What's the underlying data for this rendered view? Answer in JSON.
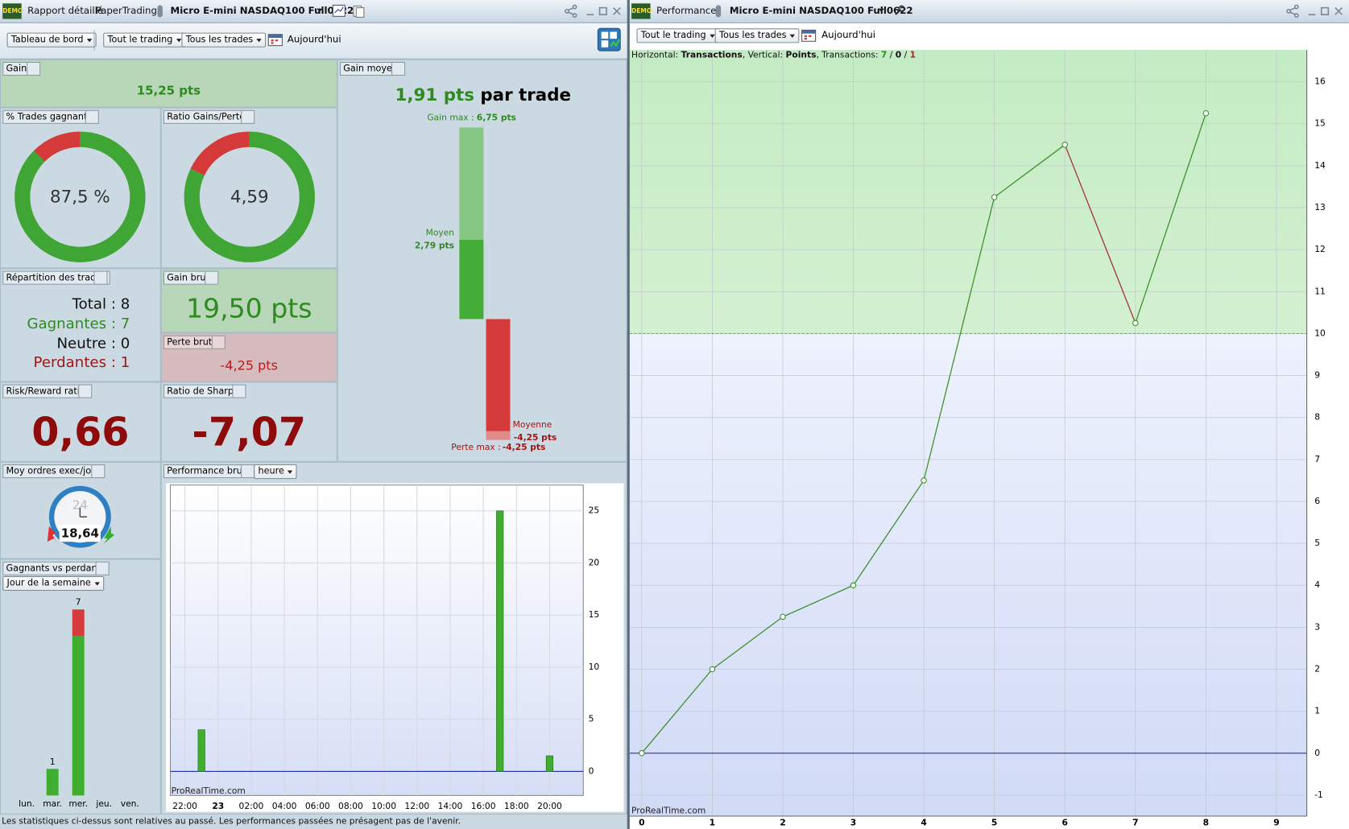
{
  "left_window": {
    "badge": "DEMO",
    "tabs": [
      "Rapport détaillé",
      "PaperTrading",
      "Micro E-mini NASDAQ100 Full0622"
    ],
    "toolbar": {
      "view": "Tableau de bord",
      "scope": "Tout le trading",
      "trades": "Tous les trades",
      "period": "Aujourd'hui"
    },
    "gain": {
      "title": "Gain",
      "value": "15,25 pts"
    },
    "win_rate": {
      "title": "% Trades gagnants",
      "value": 87.5,
      "label": "87,5 %",
      "win_color": "#3fa535",
      "loss_color": "#d43a3a"
    },
    "gain_loss_ratio": {
      "title": "Ratio Gains/Pertes",
      "value": 4.59,
      "label": "4,59",
      "win_color": "#3fa535",
      "loss_color": "#d43a3a"
    },
    "distribution": {
      "title": "Répartition des trades",
      "total": "Total : 8",
      "winners": "Gagnantes : 7",
      "neutral": "Neutre : 0",
      "losers": "Perdantes : 1"
    },
    "gross_gain": {
      "title": "Gain brut",
      "value": "19,50 pts"
    },
    "gross_loss": {
      "title": "Perte brute",
      "value": "-4,25 pts"
    },
    "risk_reward": {
      "title": "Risk/Reward ratio",
      "value": "0,66"
    },
    "sharpe": {
      "title": "Ratio de Sharpe",
      "value": "-7,07"
    },
    "average_gain": {
      "title": "Gain moyen",
      "headline": "1,91 pts",
      "headline_suffix": "par trade",
      "gain_max_label": "Gain max :",
      "gain_max": {
        "value": 6.75,
        "label": "6,75 pts"
      },
      "mean_gain_label": "Moyen",
      "mean_gain": {
        "value": 2.79,
        "label": "2,79 pts"
      },
      "mean_loss_label": "Moyenne",
      "mean_loss": {
        "value": -4.25,
        "label": "-4,25 pts"
      },
      "loss_max_label": "Perte max :",
      "loss_max": {
        "value": -4.25,
        "label": "-4,25 pts"
      }
    },
    "orders_per_day": {
      "title": "Moy ordres exec/jour",
      "dial": "24",
      "value": "18,64"
    },
    "winners_vs_losers": {
      "title": "Gagnants vs perdants",
      "grouping": "Jour de la semaine",
      "categories": [
        "lun.",
        "mar.",
        "mer.",
        "jeu.",
        "ven."
      ],
      "winners": [
        0,
        1,
        6,
        0,
        0
      ],
      "losers": [
        0,
        0,
        1,
        0,
        0
      ],
      "totals": [
        null,
        1,
        7,
        null,
        null
      ],
      "win_color": "#3fae2e",
      "loss_color": "#d63c3c"
    },
    "gross_performance": {
      "type": "bar",
      "title": "Performance brute",
      "interval": "heure",
      "watermark": "ProRealTime.com",
      "x": [
        23,
        41,
        44
      ],
      "values": [
        4,
        25,
        1.5
      ],
      "color": "#3fae2e",
      "xlim": [
        21.12,
        46.03
      ],
      "ylim": [
        -2.31,
        27.48
      ],
      "xticks": [
        {
          "value": 22,
          "label": "22:00"
        },
        {
          "value": 24,
          "label": "23"
        },
        {
          "value": 26,
          "label": "02:00"
        },
        {
          "value": 28,
          "label": "04:00"
        },
        {
          "value": 30,
          "label": "06:00"
        },
        {
          "value": 32,
          "label": "08:00"
        },
        {
          "value": 34,
          "label": "10:00"
        },
        {
          "value": 36,
          "label": "12:00"
        },
        {
          "value": 38,
          "label": "14:00"
        },
        {
          "value": 40,
          "label": "16:00"
        },
        {
          "value": 42,
          "label": "18:00"
        },
        {
          "value": 44,
          "label": "20:00"
        }
      ],
      "yticks": [
        0,
        5,
        10,
        15,
        20,
        25
      ],
      "grid": true
    },
    "footer": "Les statistiques ci-dessus sont relatives au passé. Les performances passées ne présagent pas de l'avenir."
  },
  "right_window": {
    "badge": "DEMO",
    "tabs": [
      "Performance",
      "Micro E-mini NASDAQ100 Full0622"
    ],
    "toolbar": {
      "scope": "Tout le trading",
      "trades": "Tous les trades",
      "period": "Aujourd'hui"
    },
    "info": [
      "Horizontal: ",
      "Transactions",
      ", Vertical: ",
      "Points",
      ", Transactions: ",
      "7",
      " / ",
      "0",
      " / ",
      "1"
    ],
    "chart": {
      "type": "line",
      "watermark": "ProRealTime.com",
      "x": [
        0,
        1,
        2,
        3,
        4,
        5,
        6,
        7,
        8
      ],
      "values": [
        0,
        2,
        3.25,
        4,
        6.5,
        13.25,
        14.5,
        10.25,
        15.25
      ],
      "up_color": "#3d8f2f",
      "down_color": "#a33030",
      "threshold": 10,
      "xlim": [
        -0.17,
        9.43
      ],
      "ylim": [
        -1.5,
        16.76
      ],
      "xticks": [
        0,
        1,
        2,
        3,
        4,
        5,
        6,
        7,
        8,
        9
      ],
      "yticks": [
        -1,
        0,
        1,
        2,
        3,
        4,
        5,
        6,
        7,
        8,
        9,
        10,
        11,
        12,
        13,
        14,
        15,
        16
      ],
      "grid": true
    }
  }
}
